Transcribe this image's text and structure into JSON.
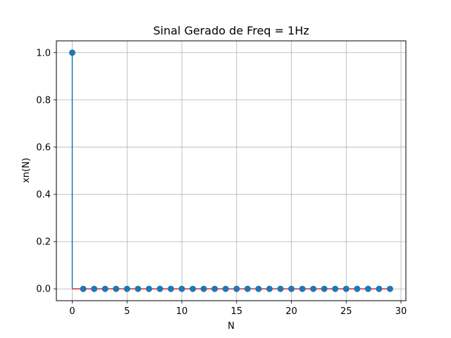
{
  "chart_data": {
    "type": "stem",
    "title": "Sinal Gerado de Freq = 1Hz",
    "xlabel": "N",
    "ylabel": "xn(N)",
    "x": [
      0,
      1,
      2,
      3,
      4,
      5,
      6,
      7,
      8,
      9,
      10,
      11,
      12,
      13,
      14,
      15,
      16,
      17,
      18,
      19,
      20,
      21,
      22,
      23,
      24,
      25,
      26,
      27,
      28,
      29
    ],
    "values": [
      1.0,
      0,
      0,
      0,
      0,
      0,
      0,
      0,
      0,
      0,
      0,
      0,
      0,
      0,
      0,
      0,
      0,
      0,
      0,
      0,
      0,
      0,
      0,
      0,
      0,
      0,
      0,
      0,
      0,
      0
    ],
    "xlim": [
      -1.45,
      30.45
    ],
    "ylim": [
      -0.05,
      1.05
    ],
    "xticks": [
      0,
      5,
      10,
      15,
      20,
      25,
      30
    ],
    "xtick_labels": [
      "0",
      "5",
      "10",
      "15",
      "20",
      "25",
      "30"
    ],
    "yticks": [
      0.0,
      0.2,
      0.4,
      0.6,
      0.8,
      1.0
    ],
    "ytick_labels": [
      "0.0",
      "0.2",
      "0.4",
      "0.6",
      "0.8",
      "1.0"
    ],
    "grid": true,
    "colors": {
      "marker": "#1f77b4",
      "stem": "#1f77b4",
      "baseline": "#d62728",
      "grid": "#b0b0b0",
      "axes": "#000000"
    }
  }
}
